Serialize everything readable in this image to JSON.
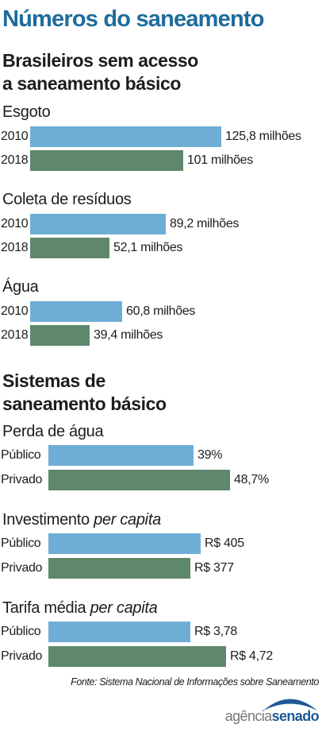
{
  "title": "Números do saneamento",
  "colors": {
    "title": "#1e6c9c",
    "series_0": "#6eaed6",
    "series_1": "#5e876b"
  },
  "sections": [
    {
      "title_line1": "Brasileiros sem acesso",
      "title_line2": "a saneamento básico"
    },
    {
      "title_line1": "Sistemas de",
      "title_line2": "saneamento básico"
    }
  ],
  "chart_data": [
    {
      "type": "bar",
      "orientation": "horizontal",
      "title": "Esgoto",
      "categories": [
        "2010",
        "2018"
      ],
      "values": [
        125.8,
        101
      ],
      "value_labels": [
        "125,8 milhões",
        "101 milhões"
      ],
      "unit": "milhões"
    },
    {
      "type": "bar",
      "orientation": "horizontal",
      "title": "Coleta de resíduos",
      "categories": [
        "2010",
        "2018"
      ],
      "values": [
        89.2,
        52.1
      ],
      "value_labels": [
        "89,2 milhões",
        "52,1 milhões"
      ],
      "unit": "milhões"
    },
    {
      "type": "bar",
      "orientation": "horizontal",
      "title": "Água",
      "categories": [
        "2010",
        "2018"
      ],
      "values": [
        60.8,
        39.4
      ],
      "value_labels": [
        "60,8 milhões",
        "39,4 milhões"
      ],
      "unit": "milhões"
    },
    {
      "type": "bar",
      "orientation": "horizontal",
      "title": "Perda de água",
      "categories": [
        "Público",
        "Privado"
      ],
      "values": [
        39,
        48.7
      ],
      "value_labels": [
        "39%",
        "48,7%"
      ],
      "unit": "%"
    },
    {
      "type": "bar",
      "orientation": "horizontal",
      "title": "Investimento",
      "title_italic": "per capita",
      "categories": [
        "Público",
        "Privado"
      ],
      "values": [
        405,
        377
      ],
      "value_labels": [
        "R$ 405",
        "R$ 377"
      ],
      "unit": "R$"
    },
    {
      "type": "bar",
      "orientation": "horizontal",
      "title": "Tarifa média",
      "title_italic": "per capita",
      "categories": [
        "Público",
        "Privado"
      ],
      "values": [
        3.78,
        4.72
      ],
      "value_labels": [
        "R$ 3,78",
        "R$ 4,72"
      ],
      "unit": "R$"
    }
  ],
  "source": "Fonte: Sistema Nacional de Informações sobre Saneamento",
  "logo": {
    "part1": "agência",
    "part2": "senado"
  }
}
